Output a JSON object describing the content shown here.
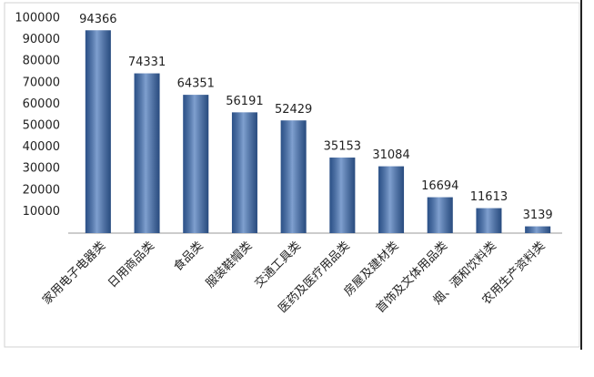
{
  "chart_data": {
    "type": "bar",
    "categories": [
      "家用电子电器类",
      "日用商品类",
      "食品类",
      "服装鞋帽类",
      "交通工具类",
      "医药及医疗用品类",
      "房屋及建材类",
      "首饰及文体用品类",
      "烟、酒和饮料类",
      "农用生产资料类"
    ],
    "values": [
      94366,
      74331,
      64351,
      56191,
      52429,
      35153,
      31084,
      16694,
      11613,
      3139
    ],
    "color": "#3a6cb5",
    "ylim": [
      0,
      100000
    ],
    "yticks": [
      10000,
      20000,
      30000,
      40000,
      50000,
      60000,
      70000,
      80000,
      90000,
      100000
    ]
  }
}
